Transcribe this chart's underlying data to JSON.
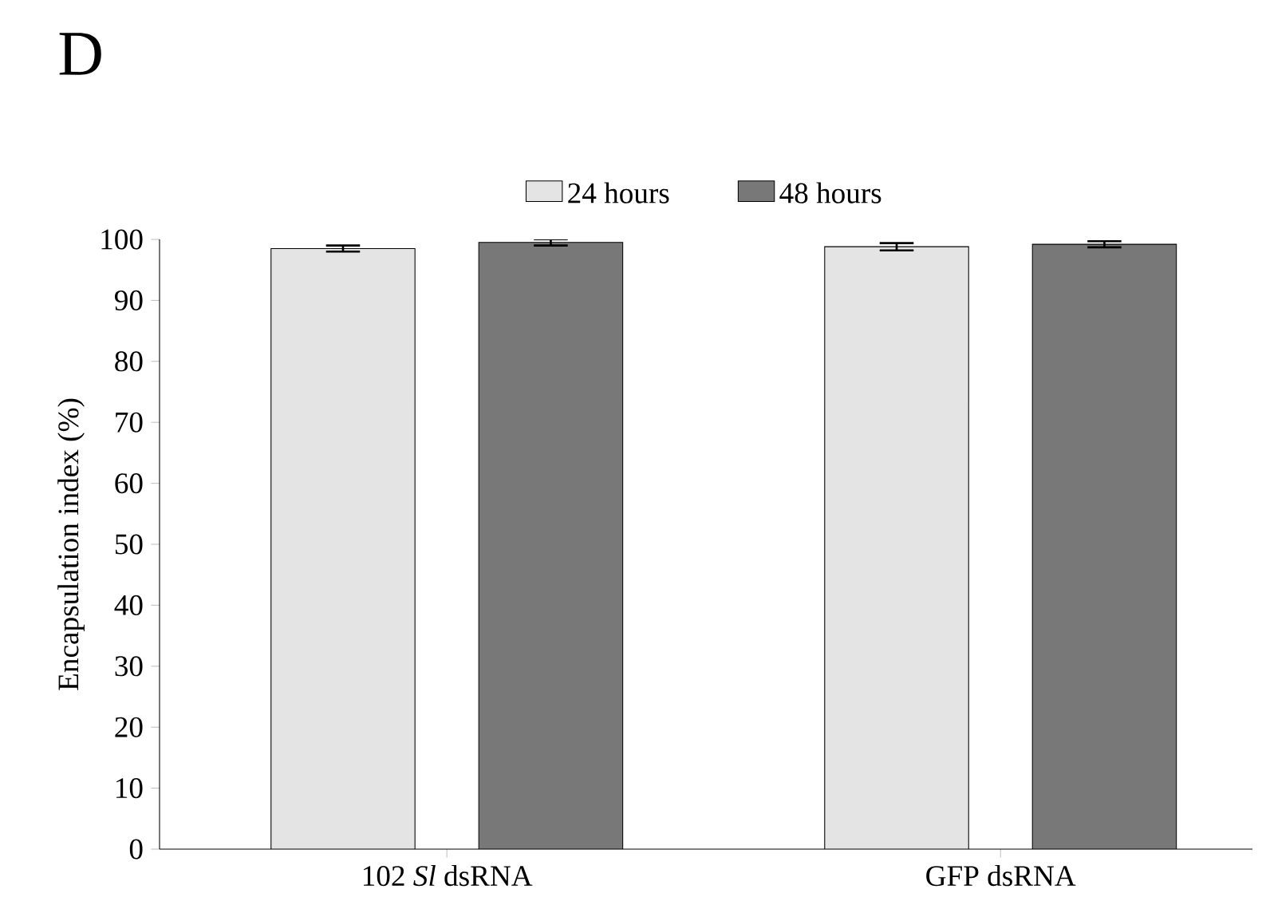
{
  "chart_data": {
    "type": "bar",
    "title": "D",
    "ylabel": "Encapsulation index (%)",
    "categories": [
      "102 *Sl* dsRNA",
      "GFP dsRNA"
    ],
    "series": [
      {
        "name": "24 hours",
        "color": "#e4e4e4",
        "values": [
          98.5,
          98.8
        ],
        "errors": [
          0.5,
          0.6
        ]
      },
      {
        "name": "48 hours",
        "color": "#787878",
        "values": [
          99.5,
          99.2
        ],
        "errors": [
          0.5,
          0.5
        ]
      }
    ],
    "ylim": [
      0,
      100
    ],
    "yticks": [
      0,
      10,
      20,
      30,
      40,
      50,
      60,
      70,
      80,
      90,
      100
    ],
    "legend": "top",
    "grid": false
  }
}
